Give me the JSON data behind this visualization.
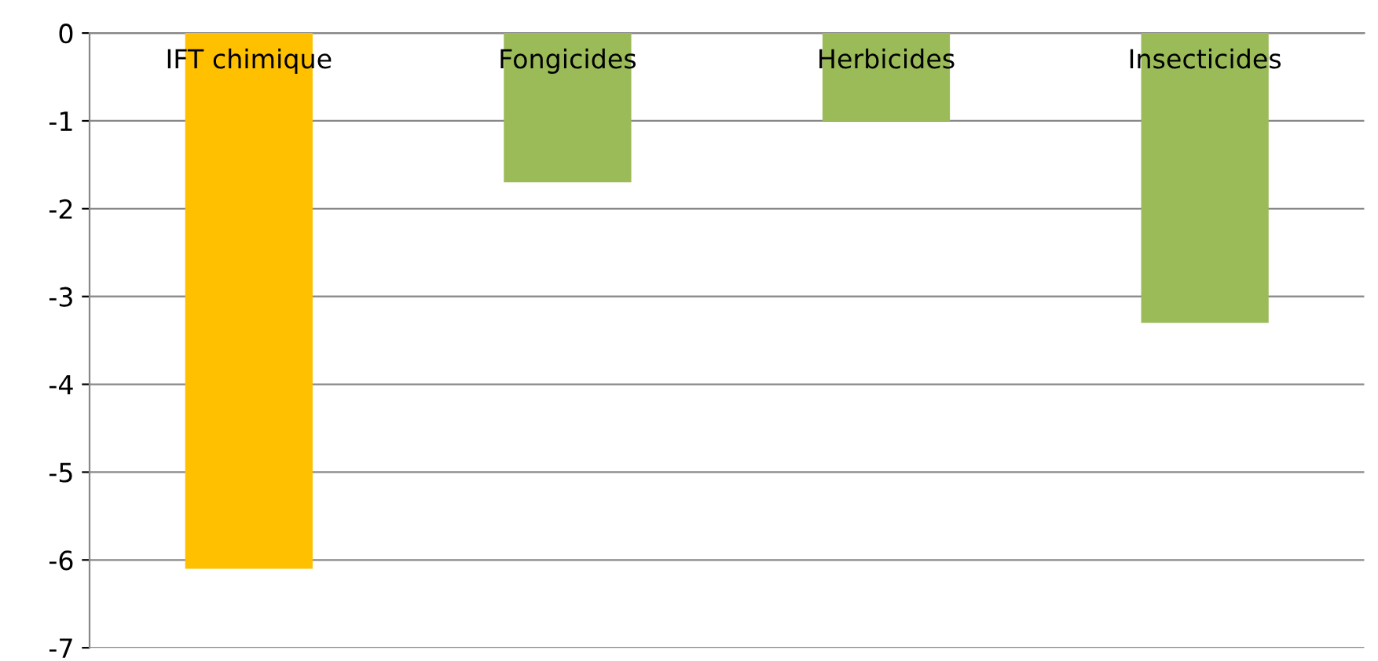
{
  "chart_data": {
    "type": "bar",
    "categories": [
      "IFT chimique",
      "Fongicides",
      "Herbicides",
      "Insecticides"
    ],
    "values": [
      -6.1,
      -1.7,
      -1.0,
      -3.3
    ],
    "colors": [
      "#ffc000",
      "#9bbb59",
      "#9bbb59",
      "#9bbb59"
    ],
    "ylim": [
      -7,
      0
    ],
    "yticks": [
      -7,
      -6,
      -5,
      -4,
      -3,
      -2,
      -1,
      0
    ],
    "grid": "y",
    "legend": false
  }
}
